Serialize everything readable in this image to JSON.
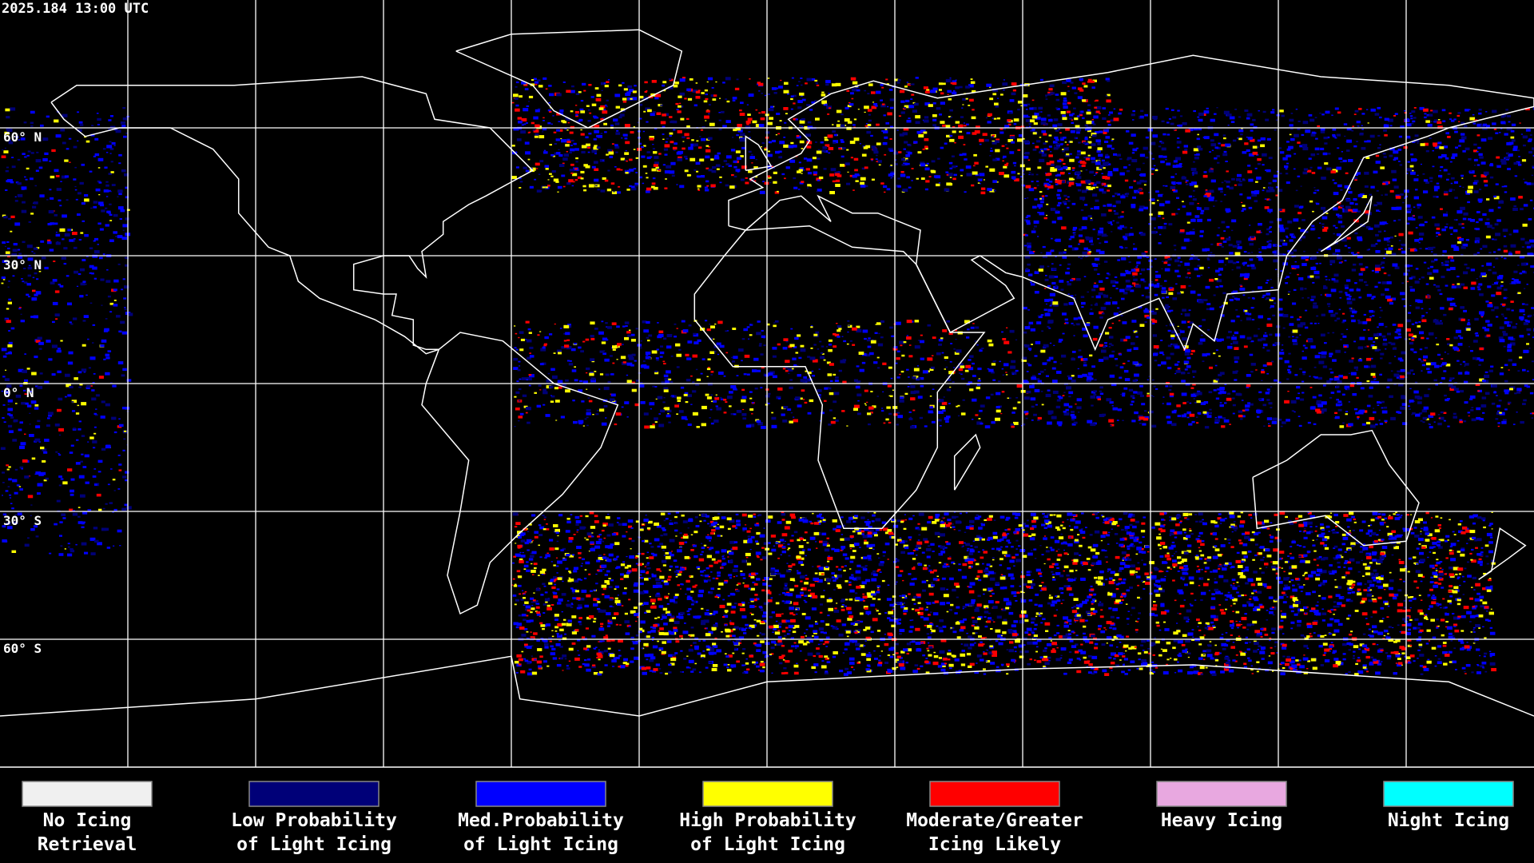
{
  "header": {
    "timestamp": "2025.184 13:00 UTC"
  },
  "map": {
    "latitude_labels": [
      "60° N",
      "30° N",
      "0° N",
      "30° S",
      "60° S"
    ]
  },
  "legend": {
    "items": [
      {
        "label_lines": [
          "No Icing",
          "Retrieval"
        ],
        "color": "#f0f0f0"
      },
      {
        "label_lines": [
          "Low Probability",
          "of Light Icing"
        ],
        "color": "#000078"
      },
      {
        "label_lines": [
          "Med.Probability",
          "of Light Icing"
        ],
        "color": "#0000ff"
      },
      {
        "label_lines": [
          "High Probability",
          "of Light Icing"
        ],
        "color": "#ffff00"
      },
      {
        "label_lines": [
          "Moderate/Greater",
          "Icing Likely"
        ],
        "color": "#ff0000"
      },
      {
        "label_lines": [
          "Heavy Icing"
        ],
        "color": "#e8a8e0"
      },
      {
        "label_lines": [
          "Night Icing"
        ],
        "color": "#00ffff"
      }
    ]
  }
}
